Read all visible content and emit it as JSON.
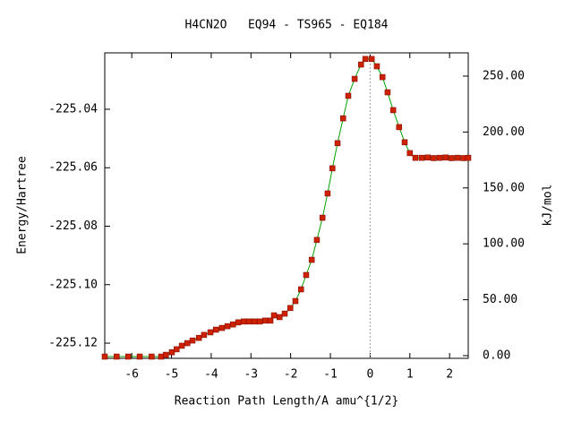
{
  "chart_data": {
    "type": "line",
    "title": "H4CN2O   EQ94 - TS965 - EQ184",
    "xlabel": "Reaction Path Length/A amu^{1/2}",
    "ylabel": "Energy/Hartree",
    "y2label": "kJ/mol",
    "x": [
      -6.68,
      -6.38,
      -6.09,
      -5.8,
      -5.5,
      -5.26,
      -5.14,
      -4.99,
      -4.87,
      -4.74,
      -4.6,
      -4.47,
      -4.31,
      -4.18,
      -4.02,
      -3.88,
      -3.73,
      -3.59,
      -3.45,
      -3.32,
      -3.18,
      -3.05,
      -2.91,
      -2.78,
      -2.64,
      -2.51,
      -2.42,
      -2.28,
      -2.15,
      -2.01,
      -1.88,
      -1.74,
      -1.61,
      -1.47,
      -1.34,
      -1.2,
      -1.07,
      -0.95,
      -0.82,
      -0.68,
      -0.55,
      -0.39,
      -0.23,
      -0.12,
      0.04,
      0.17,
      0.31,
      0.44,
      0.58,
      0.73,
      0.87,
      1.0,
      1.14,
      1.3,
      1.45,
      1.6,
      1.75,
      1.9,
      2.05,
      2.2,
      2.35,
      2.47
    ],
    "series": [
      {
        "color": "#00a000",
        "marker_color": "#cc2200",
        "values": [
          -225.1246,
          -225.1246,
          -225.1246,
          -225.1246,
          -225.1246,
          -225.1246,
          -225.124,
          -225.1231,
          -225.1221,
          -225.1209,
          -225.12,
          -225.1191,
          -225.1182,
          -225.1172,
          -225.1163,
          -225.1154,
          -225.1148,
          -225.1142,
          -225.1136,
          -225.1129,
          -225.1126,
          -225.1126,
          -225.1126,
          -225.1126,
          -225.1123,
          -225.1123,
          -225.1105,
          -225.1111,
          -225.1099,
          -225.108,
          -225.1056,
          -225.1016,
          -225.0967,
          -225.0915,
          -225.0847,
          -225.0771,
          -225.0688,
          -225.0602,
          -225.0516,
          -225.0431,
          -225.0354,
          -225.0296,
          -225.0247,
          -225.0228,
          -225.0228,
          -225.0253,
          -225.029,
          -225.0342,
          -225.0403,
          -225.0461,
          -225.0513,
          -225.055,
          -225.0566,
          -225.0566,
          -225.0565,
          -225.0567,
          -225.0566,
          -225.0565,
          -225.0567,
          -225.0566,
          -225.0567,
          -225.0566
        ]
      }
    ],
    "vline_x": 0,
    "xlim": [
      -6.68,
      2.47
    ],
    "xticks": [
      -6,
      -5,
      -4,
      -3,
      -2,
      -1,
      0,
      1,
      2
    ],
    "ylim": [
      -225.1252,
      -225.0207
    ],
    "yticks": [
      -225.04,
      -225.06,
      -225.08,
      {
        "value": -225.1,
        "label": "-225.10"
      },
      -225.12
    ],
    "y2lim": [
      -2.4,
      270.8
    ],
    "y2ticks": [
      {
        "value": 0,
        "label": "0.00"
      },
      {
        "value": 50,
        "label": "50.00"
      },
      {
        "value": 100,
        "label": "100.00"
      },
      {
        "value": 150,
        "label": "150.00"
      },
      {
        "value": 200,
        "label": "200.00"
      },
      {
        "value": 250,
        "label": "250.00"
      }
    ]
  }
}
